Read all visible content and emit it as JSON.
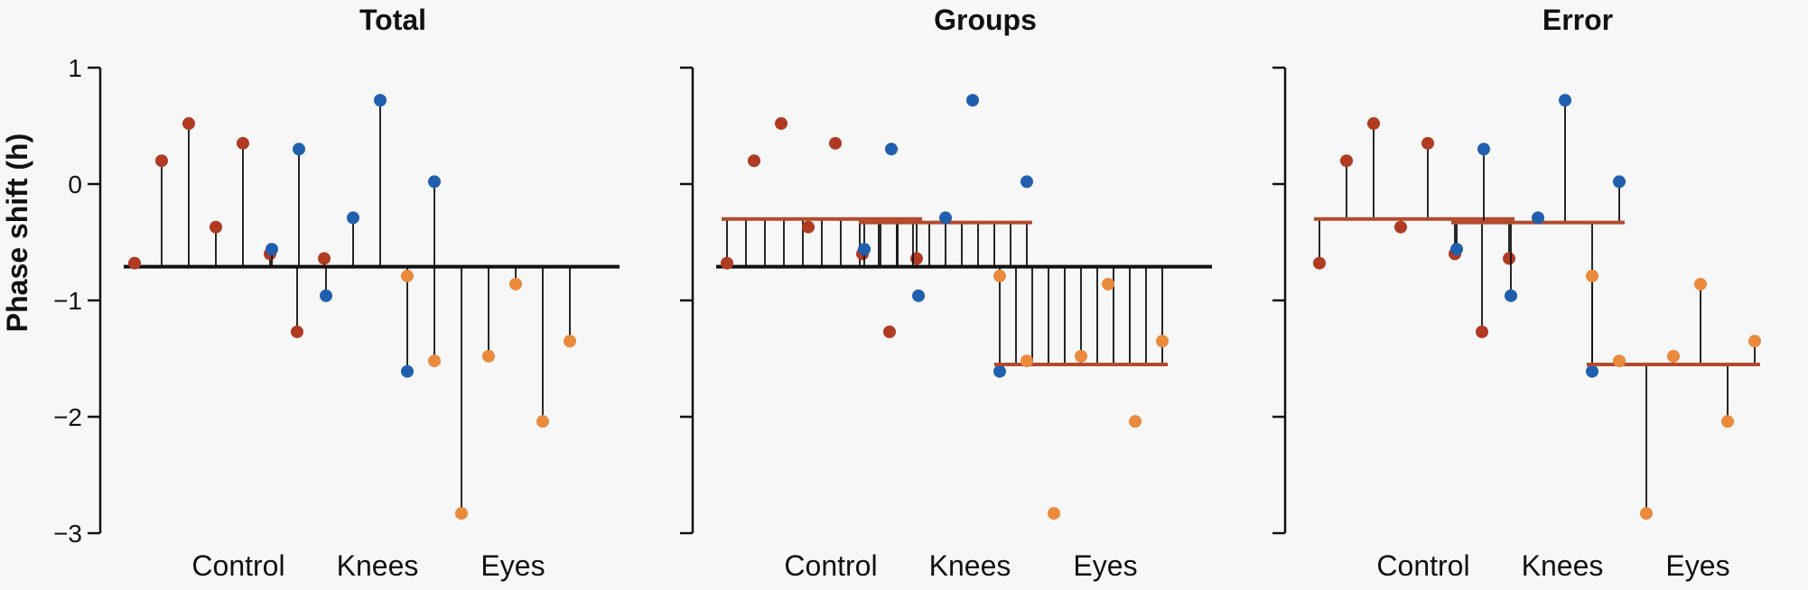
{
  "chart_data": {
    "type": "scatter",
    "ylabel": "Phase shift (h)",
    "ylim": [
      -3,
      1
    ],
    "yticks": [
      1,
      0,
      -1,
      -2,
      -3
    ],
    "ytick_labels": [
      "1",
      "0",
      "−1",
      "−2",
      "−3"
    ],
    "categories": [
      "Control",
      "Knees",
      "Eyes"
    ],
    "grand_mean": -0.71,
    "group_means": [
      -0.3,
      -0.33,
      -1.55
    ],
    "groups": [
      {
        "name": "Control",
        "color": "#b03a22",
        "values": [
          -0.68,
          0.2,
          0.52,
          -0.37,
          0.35,
          -0.6,
          -1.27,
          -0.64
        ]
      },
      {
        "name": "Knees",
        "color": "#1f5fae",
        "values": [
          -0.56,
          0.3,
          -0.96,
          -0.29,
          0.72,
          -1.61,
          0.02
        ]
      },
      {
        "name": "Eyes",
        "color": "#ea8a3c",
        "values": [
          -0.79,
          -1.52,
          -2.83,
          -1.48,
          -0.86,
          -2.04,
          -1.35
        ]
      }
    ],
    "panels": [
      {
        "title": "Total",
        "stems": "to-grand-mean"
      },
      {
        "title": "Groups",
        "stems": "group-mean-to-grand-mean"
      },
      {
        "title": "Error",
        "stems": "to-group-mean"
      }
    ]
  }
}
